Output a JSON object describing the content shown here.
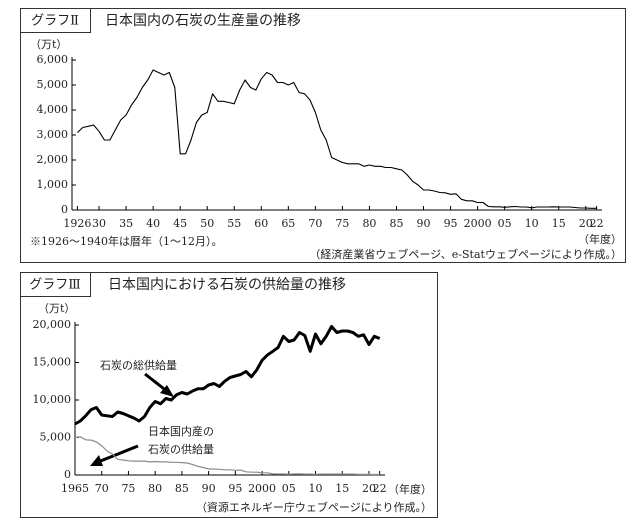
{
  "chart_data": [
    {
      "type": "line",
      "label": "グラフⅡ",
      "title": "日本国内の石炭の生産量の推移",
      "y_label": "（万t）",
      "x_label": "（年度）",
      "note": "※1926～1940年は暦年（1～12月）。",
      "source": "（経済産業省ウェブページ、e-Statウェブページにより作成。）",
      "color": "#000000",
      "xlim": [
        1925,
        2023
      ],
      "ylim": [
        0,
        6000
      ],
      "yticks": [
        0,
        {
          "value": 1000,
          "label": "1,000"
        },
        {
          "value": 2000,
          "label": "2,000"
        },
        {
          "value": 3000,
          "label": "3,000"
        },
        {
          "value": 4000,
          "label": "4,000"
        },
        {
          "value": 5000,
          "label": "5,000"
        },
        {
          "value": 6000,
          "label": "6,000"
        }
      ],
      "xticks": [
        1926,
        {
          "value": 1930,
          "label": "30"
        },
        {
          "value": 1935,
          "label": "35"
        },
        {
          "value": 1940,
          "label": "40"
        },
        {
          "value": 1945,
          "label": "45"
        },
        {
          "value": 1950,
          "label": "50"
        },
        {
          "value": 1955,
          "label": "55"
        },
        {
          "value": 1960,
          "label": "60"
        },
        {
          "value": 1965,
          "label": "65"
        },
        {
          "value": 1970,
          "label": "70"
        },
        {
          "value": 1975,
          "label": "75"
        },
        {
          "value": 1980,
          "label": "80"
        },
        {
          "value": 1985,
          "label": "85"
        },
        {
          "value": 1990,
          "label": "90"
        },
        {
          "value": 1995,
          "label": "95"
        },
        {
          "value": 2000,
          "label": "2000"
        },
        {
          "value": 2005,
          "label": "05"
        },
        {
          "value": 2010,
          "label": "10"
        },
        {
          "value": 2015,
          "label": "15"
        },
        {
          "value": 2020,
          "label": "20"
        },
        {
          "value": 2022,
          "label": "22"
        }
      ],
      "x": [
        1926,
        1927,
        1928,
        1929,
        1930,
        1931,
        1932,
        1933,
        1934,
        1935,
        1936,
        1937,
        1938,
        1939,
        1940,
        1941,
        1942,
        1943,
        1944,
        1945,
        1946,
        1947,
        1948,
        1949,
        1950,
        1951,
        1952,
        1953,
        1954,
        1955,
        1956,
        1957,
        1958,
        1959,
        1960,
        1961,
        1962,
        1963,
        1964,
        1965,
        1966,
        1967,
        1968,
        1969,
        1970,
        1971,
        1972,
        1973,
        1974,
        1975,
        1976,
        1977,
        1978,
        1979,
        1980,
        1981,
        1982,
        1983,
        1984,
        1985,
        1986,
        1987,
        1988,
        1989,
        1990,
        1991,
        1992,
        1993,
        1994,
        1995,
        1996,
        1997,
        1998,
        1999,
        2000,
        2001,
        2002,
        2003,
        2004,
        2005,
        2006,
        2007,
        2008,
        2009,
        2010,
        2011,
        2012,
        2013,
        2014,
        2015,
        2016,
        2017,
        2018,
        2019,
        2020,
        2021,
        2022
      ],
      "values": [
        3100,
        3300,
        3350,
        3400,
        3150,
        2800,
        2800,
        3200,
        3600,
        3800,
        4200,
        4500,
        4900,
        5200,
        5600,
        5500,
        5400,
        5500,
        4900,
        2250,
        2250,
        2800,
        3500,
        3800,
        3900,
        4650,
        4350,
        4350,
        4300,
        4250,
        4800,
        5200,
        4900,
        4800,
        5250,
        5500,
        5400,
        5100,
        5100,
        5000,
        5100,
        4700,
        4650,
        4400,
        3900,
        3200,
        2800,
        2100,
        2000,
        1900,
        1850,
        1850,
        1850,
        1750,
        1800,
        1750,
        1750,
        1700,
        1700,
        1650,
        1600,
        1400,
        1150,
        1000,
        800,
        800,
        760,
        700,
        690,
        630,
        650,
        430,
        370,
        370,
        300,
        300,
        140,
        130,
        130,
        110,
        130,
        140,
        120,
        120,
        90,
        120,
        120,
        120,
        130,
        120,
        120,
        120,
        100,
        80,
        80,
        70,
        70
      ]
    },
    {
      "type": "line",
      "label": "グラフⅢ",
      "title": "日本国内における石炭の供給量の推移",
      "y_label": "（万t）",
      "x_label": "（年度）",
      "source": "（資源エネルギー庁ウェブページにより作成。）",
      "xlim": [
        1965,
        2023
      ],
      "ylim": [
        0,
        20000
      ],
      "yticks": [
        0,
        {
          "value": 5000,
          "label": "5,000"
        },
        {
          "value": 10000,
          "label": "10,000"
        },
        {
          "value": 15000,
          "label": "15,000"
        },
        {
          "value": 20000,
          "label": "20,000"
        }
      ],
      "xticks": [
        1965,
        {
          "value": 1970,
          "label": "70"
        },
        {
          "value": 1975,
          "label": "75"
        },
        {
          "value": 1980,
          "label": "80"
        },
        {
          "value": 1985,
          "label": "85"
        },
        {
          "value": 1990,
          "label": "90"
        },
        {
          "value": 1995,
          "label": "95"
        },
        2000,
        {
          "value": 2005,
          "label": "05"
        },
        {
          "value": 2010,
          "label": "10"
        },
        {
          "value": 2015,
          "label": "15"
        },
        {
          "value": 2020,
          "label": "20"
        },
        {
          "value": 2022,
          "label": "22"
        }
      ],
      "x": [
        1965,
        1966,
        1967,
        1968,
        1969,
        1970,
        1971,
        1972,
        1973,
        1974,
        1975,
        1976,
        1977,
        1978,
        1979,
        1980,
        1981,
        1982,
        1983,
        1984,
        1985,
        1986,
        1987,
        1988,
        1989,
        1990,
        1991,
        1992,
        1993,
        1994,
        1995,
        1996,
        1997,
        1998,
        1999,
        2000,
        2001,
        2002,
        2003,
        2004,
        2005,
        2006,
        2007,
        2008,
        2009,
        2010,
        2011,
        2012,
        2013,
        2014,
        2015,
        2016,
        2017,
        2018,
        2019,
        2020,
        2021,
        2022
      ],
      "series": [
        {
          "name": "石炭の総供給量",
          "color": "#000000",
          "values": [
            6800,
            7200,
            7900,
            8700,
            9000,
            8000,
            7900,
            7800,
            8400,
            8200,
            7900,
            7600,
            7200,
            7800,
            9000,
            9800,
            9500,
            10200,
            10000,
            10700,
            11000,
            10800,
            11200,
            11500,
            11500,
            12000,
            12200,
            11800,
            12500,
            13000,
            13200,
            13400,
            13800,
            13100,
            14000,
            15300,
            16000,
            16500,
            17000,
            18500,
            17800,
            18000,
            19000,
            18600,
            16500,
            18800,
            17500,
            18500,
            19800,
            19000,
            19200,
            19200,
            19000,
            18500,
            18700,
            17400,
            18500,
            18200
          ]
        },
        {
          "name": "日本国内産の\n石炭の供給量",
          "color": "#8c8c8c",
          "values": [
            5000,
            5100,
            4700,
            4650,
            4400,
            3900,
            3200,
            2800,
            2100,
            2000,
            1900,
            1850,
            1850,
            1850,
            1750,
            1800,
            1750,
            1750,
            1700,
            1700,
            1650,
            1600,
            1400,
            1150,
            1000,
            800,
            800,
            760,
            700,
            690,
            630,
            650,
            430,
            370,
            370,
            300,
            300,
            140,
            130,
            130,
            110,
            130,
            140,
            120,
            120,
            90,
            120,
            120,
            120,
            130,
            120,
            120,
            120,
            100,
            80,
            80,
            70,
            70
          ]
        }
      ]
    }
  ]
}
